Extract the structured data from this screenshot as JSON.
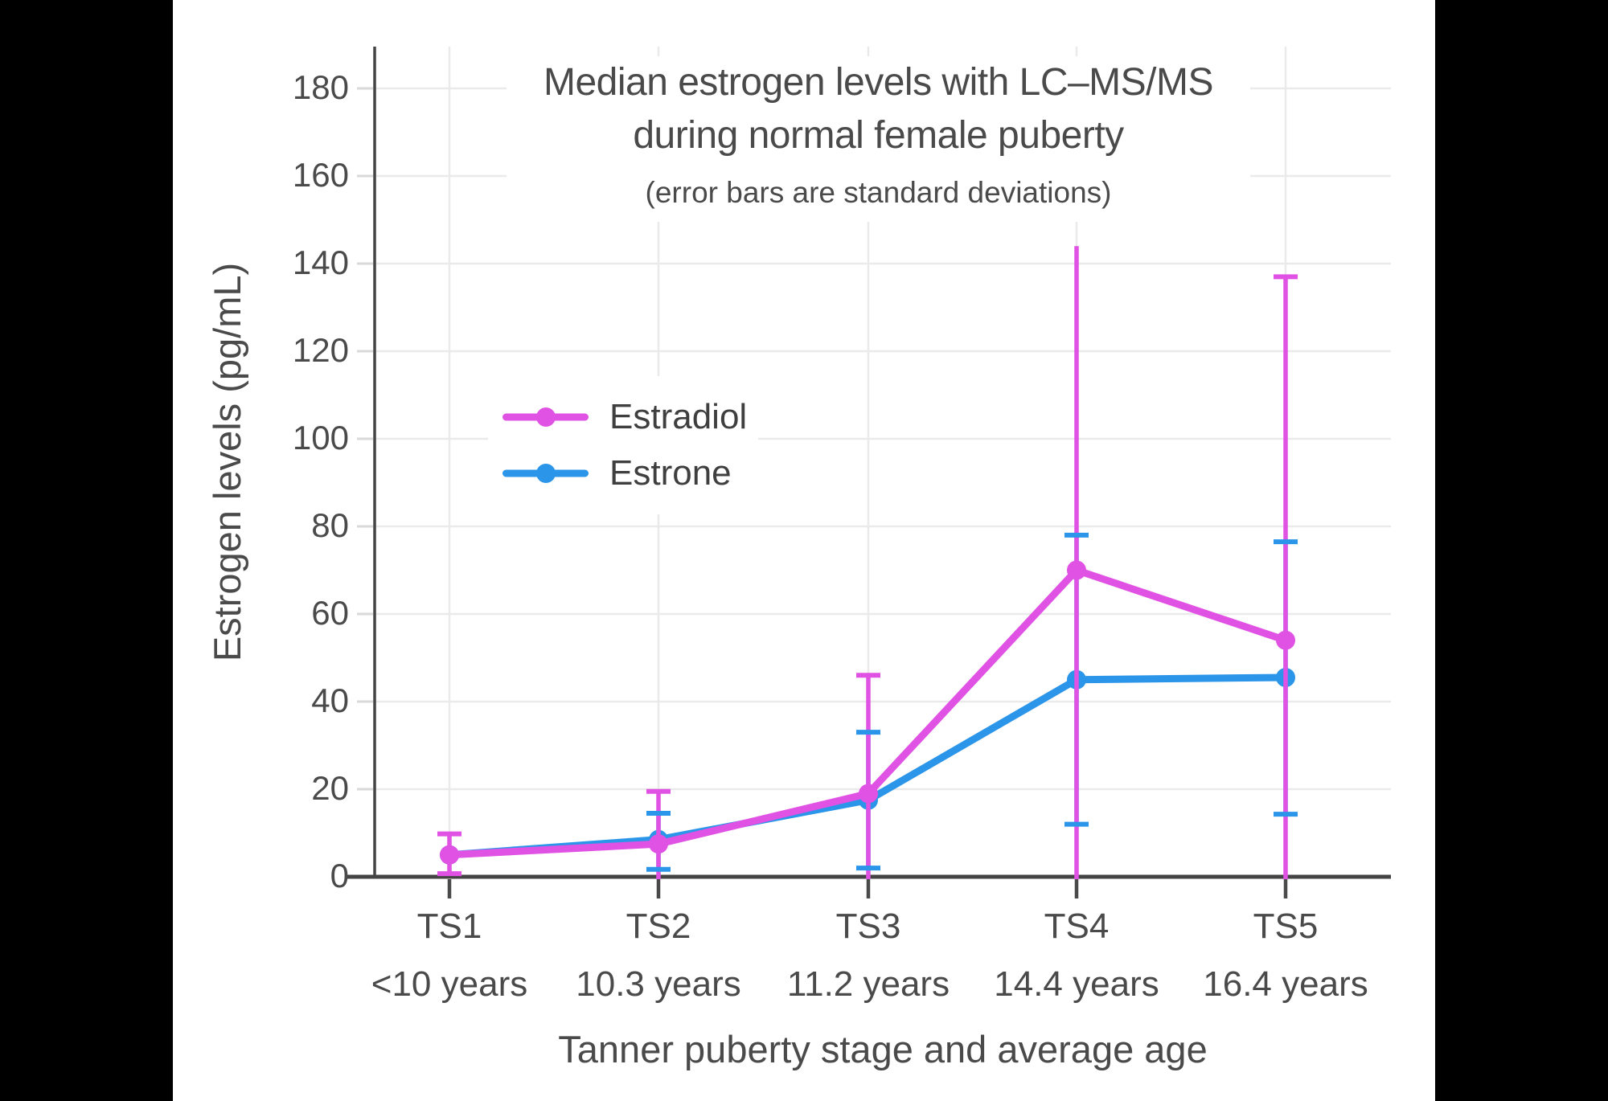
{
  "chart_data": {
    "type": "line",
    "title_line1": "Median estrogen levels with LC–MS/MS",
    "title_line2": "during normal female puberty",
    "subtitle": "(error bars are standard deviations)",
    "xlabel": "Tanner puberty stage and average age",
    "ylabel": "Estrogen levels (pg/mL)",
    "ylim": [
      0,
      190
    ],
    "yticks": [
      0,
      20,
      40,
      60,
      80,
      100,
      120,
      140,
      160,
      180
    ],
    "grid": true,
    "legend_position": "inside-upper-left",
    "categories": [
      {
        "stage": "TS1",
        "age": "<10 years"
      },
      {
        "stage": "TS2",
        "age": "10.3 years"
      },
      {
        "stage": "TS3",
        "age": "11.2 years"
      },
      {
        "stage": "TS4",
        "age": "14.4 years"
      },
      {
        "stage": "TS5",
        "age": "16.4 years"
      }
    ],
    "series": [
      {
        "name": "Estradiol",
        "color": "#E052E4",
        "values": [
          5,
          7.5,
          19,
          70,
          54
        ],
        "error_high": [
          9.8,
          19.5,
          46,
          144,
          137
        ],
        "error_low": [
          0.7,
          0,
          0,
          0,
          0
        ],
        "cap_high": [
          true,
          true,
          true,
          false,
          true
        ],
        "cap_low": [
          true,
          false,
          false,
          false,
          false
        ]
      },
      {
        "name": "Estrone",
        "color": "#2B95E9",
        "values": [
          5,
          8.5,
          17.5,
          45,
          45.5
        ],
        "error_high": [
          null,
          14.5,
          33,
          78,
          76.5
        ],
        "error_low": [
          null,
          1.7,
          2,
          12,
          14.3
        ],
        "cap_high": [
          false,
          true,
          true,
          true,
          true
        ],
        "cap_low": [
          false,
          true,
          true,
          true,
          true
        ]
      }
    ]
  }
}
